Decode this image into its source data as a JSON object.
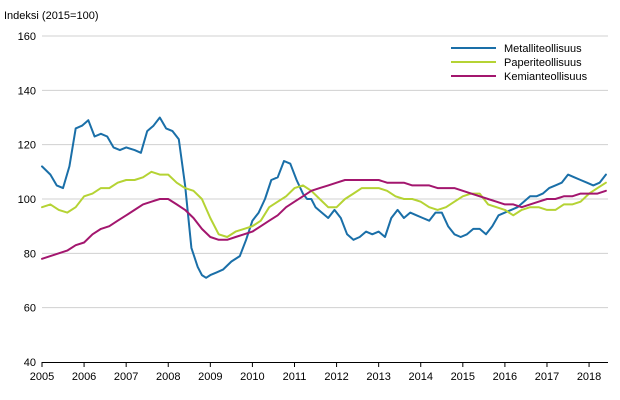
{
  "chart_data": {
    "type": "line",
    "ylabel": "Indeksi (2015=100)",
    "ylim": [
      40,
      160
    ],
    "yticks": [
      40,
      60,
      80,
      100,
      120,
      140,
      160
    ],
    "xlim": [
      2005,
      2018.45
    ],
    "xticks": [
      "2005",
      "2006",
      "2007",
      "2008",
      "2009",
      "2010",
      "2011",
      "2012",
      "2013",
      "2014",
      "2015",
      "2016",
      "2017",
      "2018"
    ],
    "grid": "horizontal",
    "legend_position": "top-right",
    "series": [
      {
        "name": "Metalliteollisuus",
        "color": "#1a6fa8",
        "x": [
          2005.0,
          2005.2,
          2005.35,
          2005.5,
          2005.65,
          2005.8,
          2005.95,
          2006.1,
          2006.25,
          2006.4,
          2006.55,
          2006.7,
          2006.85,
          2007.0,
          2007.2,
          2007.35,
          2007.5,
          2007.65,
          2007.8,
          2007.95,
          2008.1,
          2008.25,
          2008.4,
          2008.55,
          2008.7,
          2008.8,
          2008.9,
          2009.0,
          2009.15,
          2009.3,
          2009.5,
          2009.7,
          2009.85,
          2010.0,
          2010.15,
          2010.3,
          2010.45,
          2010.6,
          2010.75,
          2010.9,
          2011.05,
          2011.2,
          2011.3,
          2011.4,
          2011.5,
          2011.65,
          2011.8,
          2011.95,
          2012.1,
          2012.25,
          2012.4,
          2012.55,
          2012.7,
          2012.85,
          2013.0,
          2013.15,
          2013.3,
          2013.45,
          2013.6,
          2013.75,
          2013.9,
          2014.05,
          2014.2,
          2014.35,
          2014.5,
          2014.65,
          2014.8,
          2014.95,
          2015.1,
          2015.25,
          2015.4,
          2015.55,
          2015.7,
          2015.85,
          2016.0,
          2016.15,
          2016.3,
          2016.45,
          2016.6,
          2016.75,
          2016.9,
          2017.05,
          2017.2,
          2017.35,
          2017.5,
          2017.65,
          2017.8,
          2017.95,
          2018.1,
          2018.25,
          2018.4
        ],
        "values": [
          112,
          109,
          105,
          104,
          112,
          126,
          127,
          129,
          123,
          124,
          123,
          119,
          118,
          119,
          118,
          117,
          125,
          127,
          130,
          126,
          125,
          122,
          105,
          82,
          75,
          72,
          71,
          72,
          73,
          74,
          77,
          79,
          85,
          92,
          95,
          100,
          107,
          108,
          114,
          113,
          107,
          102,
          100,
          100,
          97,
          95,
          93,
          96,
          93,
          87,
          85,
          86,
          88,
          87,
          88,
          86,
          93,
          96,
          93,
          95,
          94,
          93,
          92,
          95,
          95,
          90,
          87,
          86,
          87,
          89,
          89,
          87,
          90,
          94,
          95,
          96,
          97,
          99,
          101,
          101,
          102,
          104,
          105,
          106,
          109,
          108,
          107,
          106,
          105,
          106,
          109
        ]
      },
      {
        "name": "Paperiteollisuus",
        "color": "#b5d334",
        "x": [
          2005.0,
          2005.2,
          2005.4,
          2005.6,
          2005.8,
          2006.0,
          2006.2,
          2006.4,
          2006.6,
          2006.8,
          2007.0,
          2007.2,
          2007.4,
          2007.6,
          2007.8,
          2008.0,
          2008.2,
          2008.4,
          2008.6,
          2008.8,
          2009.0,
          2009.2,
          2009.4,
          2009.6,
          2009.8,
          2010.0,
          2010.2,
          2010.4,
          2010.6,
          2010.8,
          2011.0,
          2011.2,
          2011.4,
          2011.6,
          2011.8,
          2012.0,
          2012.2,
          2012.4,
          2012.6,
          2012.8,
          2013.0,
          2013.2,
          2013.4,
          2013.6,
          2013.8,
          2014.0,
          2014.2,
          2014.4,
          2014.6,
          2014.8,
          2015.0,
          2015.2,
          2015.4,
          2015.6,
          2015.8,
          2016.0,
          2016.2,
          2016.4,
          2016.6,
          2016.8,
          2017.0,
          2017.2,
          2017.4,
          2017.6,
          2017.8,
          2018.0,
          2018.2,
          2018.4
        ],
        "values": [
          97,
          98,
          96,
          95,
          97,
          101,
          102,
          104,
          104,
          106,
          107,
          107,
          108,
          110,
          109,
          109,
          106,
          104,
          103,
          100,
          93,
          87,
          86,
          88,
          89,
          90,
          92,
          97,
          99,
          101,
          104,
          105,
          103,
          100,
          97,
          97,
          100,
          102,
          104,
          104,
          104,
          103,
          101,
          100,
          100,
          99,
          97,
          96,
          97,
          99,
          101,
          102,
          102,
          98,
          97,
          96,
          94,
          96,
          97,
          97,
          96,
          96,
          98,
          98,
          99,
          102,
          104,
          106
        ]
      },
      {
        "name": "Kemianteollisuus",
        "color": "#a3166e",
        "x": [
          2005.0,
          2005.2,
          2005.4,
          2005.6,
          2005.8,
          2006.0,
          2006.2,
          2006.4,
          2006.6,
          2006.8,
          2007.0,
          2007.2,
          2007.4,
          2007.6,
          2007.8,
          2008.0,
          2008.2,
          2008.4,
          2008.6,
          2008.8,
          2009.0,
          2009.2,
          2009.4,
          2009.6,
          2009.8,
          2010.0,
          2010.2,
          2010.4,
          2010.6,
          2010.8,
          2011.0,
          2011.2,
          2011.4,
          2011.6,
          2011.8,
          2012.0,
          2012.2,
          2012.4,
          2012.6,
          2012.8,
          2013.0,
          2013.2,
          2013.4,
          2013.6,
          2013.8,
          2014.0,
          2014.2,
          2014.4,
          2014.6,
          2014.8,
          2015.0,
          2015.2,
          2015.4,
          2015.6,
          2015.8,
          2016.0,
          2016.2,
          2016.4,
          2016.6,
          2016.8,
          2017.0,
          2017.2,
          2017.4,
          2017.6,
          2017.8,
          2018.0,
          2018.2,
          2018.4
        ],
        "values": [
          78,
          79,
          80,
          81,
          83,
          84,
          87,
          89,
          90,
          92,
          94,
          96,
          98,
          99,
          100,
          100,
          98,
          96,
          93,
          89,
          86,
          85,
          85,
          86,
          87,
          88,
          90,
          92,
          94,
          97,
          99,
          101,
          103,
          104,
          105,
          106,
          107,
          107,
          107,
          107,
          107,
          106,
          106,
          106,
          105,
          105,
          105,
          104,
          104,
          104,
          103,
          102,
          101,
          100,
          99,
          98,
          98,
          97,
          98,
          99,
          100,
          100,
          101,
          101,
          102,
          102,
          102,
          103
        ]
      }
    ]
  }
}
